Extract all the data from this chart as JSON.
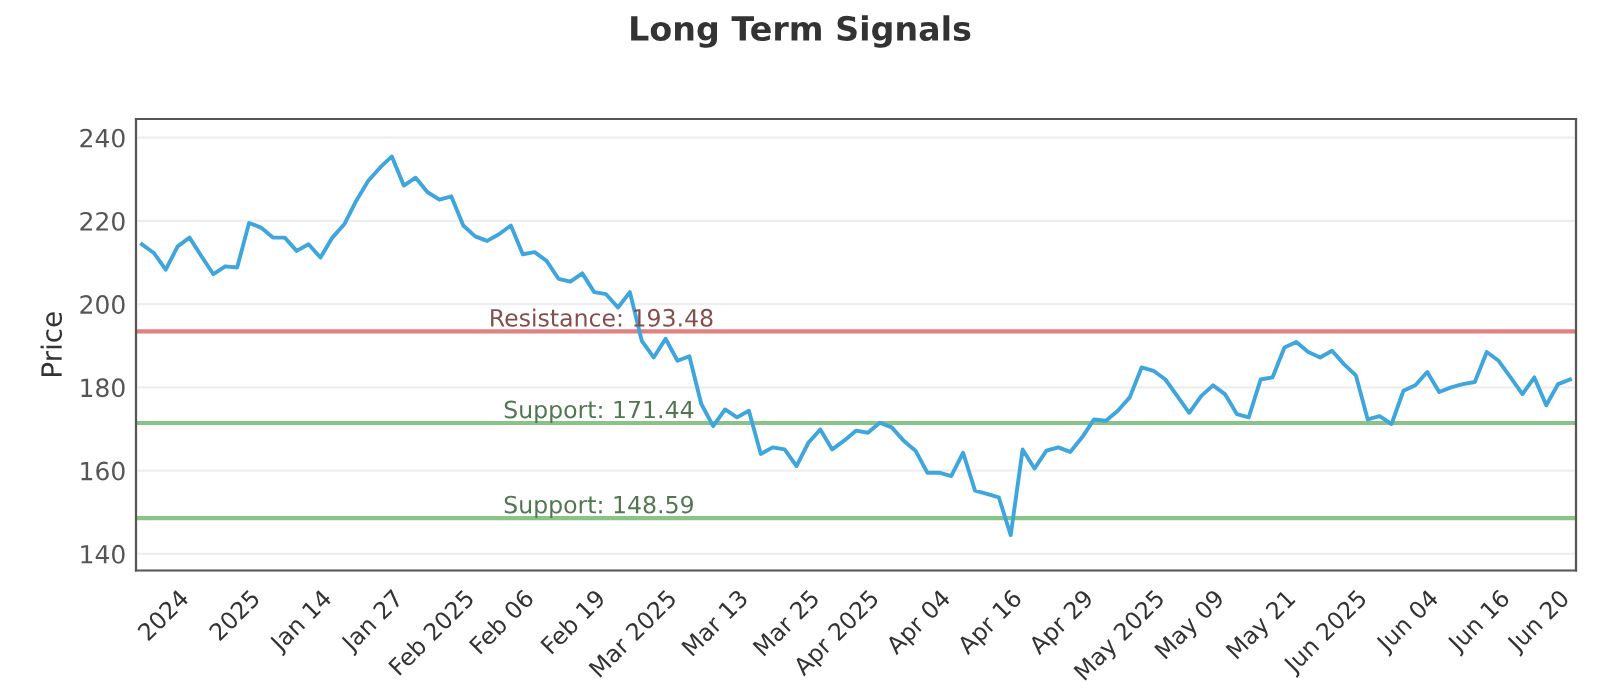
{
  "chart_data": {
    "type": "line",
    "title": "Long Term Signals",
    "ylabel": "Price",
    "categories": [
      null,
      null,
      null,
      "2024",
      null,
      null,
      null,
      null,
      null,
      "2025",
      null,
      null,
      null,
      null,
      null,
      "Jan 14",
      null,
      null,
      null,
      null,
      null,
      "Jan 27",
      null,
      null,
      null,
      null,
      null,
      "Feb 2025",
      null,
      null,
      null,
      null,
      "Feb 06",
      null,
      null,
      null,
      null,
      null,
      "Feb 19",
      null,
      null,
      null,
      null,
      null,
      "Mar 2025",
      null,
      null,
      null,
      null,
      null,
      "Mar 13",
      null,
      null,
      null,
      null,
      null,
      "Mar 25",
      null,
      null,
      null,
      null,
      "Apr 2025",
      null,
      null,
      null,
      null,
      null,
      "Apr 04",
      null,
      null,
      null,
      null,
      null,
      "Apr 16",
      null,
      null,
      null,
      null,
      null,
      "Apr 29",
      null,
      null,
      null,
      null,
      null,
      "May 2025",
      null,
      null,
      null,
      null,
      "May 09",
      null,
      null,
      null,
      null,
      null,
      "May 21",
      null,
      null,
      null,
      null,
      null,
      "Jun 2025",
      null,
      null,
      null,
      null,
      null,
      "Jun 04",
      null,
      null,
      null,
      null,
      null,
      "Jun 16",
      null,
      null,
      null,
      null,
      "Jun 20",
      null
    ],
    "series": [
      {
        "color": "#3ea6dd",
        "values": [
          214.4,
          212.3,
          208.3,
          213.9,
          216,
          211.5,
          207.2,
          209.1,
          208.8,
          219.5,
          218.4,
          216,
          216,
          212.8,
          214.4,
          211.2,
          216,
          219.2,
          224.8,
          229.6,
          232.8,
          235.5,
          228.5,
          230.4,
          226.9,
          225.1,
          225.9,
          218.9,
          216.3,
          215.2,
          216.8,
          218.9,
          212,
          212.5,
          210.4,
          206.1,
          205.4,
          207.4,
          202.9,
          202.4,
          199.2,
          202.9,
          191.2,
          187.2,
          191.7,
          186.4,
          187.5,
          176,
          170.7,
          174.7,
          172.8,
          174.4,
          164,
          165.6,
          165.1,
          161.1,
          166.7,
          169.9,
          165.1,
          167.2,
          169.6,
          169.1,
          171.5,
          170.4,
          167.2,
          164.8,
          159.5,
          159.5,
          158.7,
          164.3,
          155.2,
          154.4,
          153.6,
          144.5,
          165.1,
          160.5,
          164.8,
          165.6,
          164.5,
          168,
          172.3,
          172,
          174.4,
          177.6,
          184.8,
          184,
          181.9,
          177.9,
          173.9,
          177.9,
          180.5,
          178.4,
          173.6,
          172.8,
          181.9,
          182.4,
          189.6,
          190.9,
          188.5,
          187.2,
          188.8,
          185.6,
          182.9,
          172.3,
          173.1,
          171.2,
          179.2,
          180.5,
          183.7,
          178.9,
          180,
          180.8,
          181.3,
          188.5,
          186.4,
          182.4,
          178.4,
          182.4,
          175.7,
          180.8,
          181.9
        ]
      }
    ],
    "ylim": [
      136,
      244.5
    ],
    "yticks": [
      140,
      160,
      180,
      200,
      220,
      240
    ],
    "grid": "y",
    "marker": "none",
    "line_style": "solid",
    "legend": false,
    "ref_lines": [
      {
        "axis": "y",
        "value": 193.48,
        "label": "Resistance: 193.48",
        "color": "#e08080"
      },
      {
        "axis": "y",
        "value": 171.44,
        "label": "Support: 171.44",
        "color": "#88c488"
      },
      {
        "axis": "y",
        "value": 148.59,
        "label": "Support: 148.59",
        "color": "#88c488"
      }
    ]
  }
}
